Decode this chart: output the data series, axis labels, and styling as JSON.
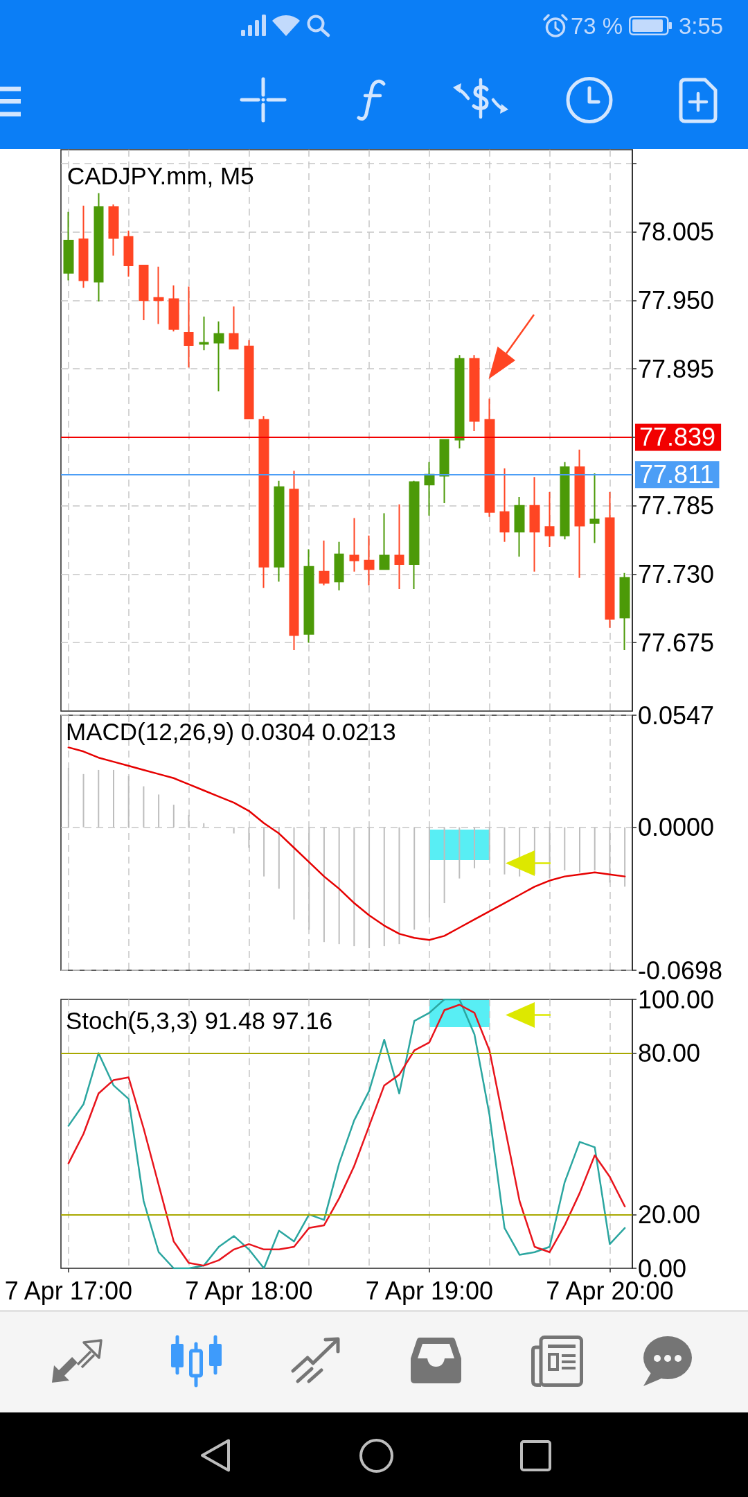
{
  "chart_data": [
    {
      "type": "candlestick",
      "title": "CADJPY.mm, M5",
      "annotations": [
        "73 %",
        "3:55"
      ],
      "categories": [
        null,
        null,
        null,
        null,
        null,
        null,
        null,
        null,
        null,
        null,
        null,
        null,
        null,
        null,
        null,
        null,
        null,
        null,
        null,
        null,
        null,
        null,
        null,
        null,
        null,
        null,
        null,
        null,
        null,
        null,
        null,
        null,
        null,
        null,
        null,
        null,
        null,
        null
      ],
      "ohlc": [
        [
          77.972,
          78.021,
          77.966,
          77.998
        ],
        [
          77.999,
          78.026,
          77.96,
          77.966
        ],
        [
          77.965,
          78.036,
          77.949,
          78.025
        ],
        [
          78.025,
          78.027,
          77.986,
          78.0
        ],
        [
          78.001,
          78.006,
          77.969,
          77.978
        ],
        [
          77.978,
          77.978,
          77.934,
          77.95
        ],
        [
          77.952,
          77.977,
          77.931,
          77.95
        ],
        [
          77.951,
          77.962,
          77.925,
          77.927
        ],
        [
          77.924,
          77.961,
          77.896,
          77.914
        ],
        [
          77.915,
          77.937,
          77.91,
          77.916
        ],
        [
          77.916,
          77.933,
          77.877,
          77.923
        ],
        [
          77.923,
          77.945,
          77.911,
          77.911
        ],
        [
          77.913,
          77.918,
          77.855,
          77.855
        ],
        [
          77.854,
          77.857,
          77.719,
          77.736
        ],
        [
          77.736,
          77.805,
          77.724,
          77.8
        ],
        [
          77.798,
          77.813,
          77.669,
          77.681
        ],
        [
          77.682,
          77.75,
          77.675,
          77.736
        ],
        [
          77.732,
          77.757,
          77.721,
          77.723
        ],
        [
          77.724,
          77.756,
          77.717,
          77.746
        ],
        [
          77.745,
          77.775,
          77.732,
          77.741
        ],
        [
          77.741,
          77.761,
          77.721,
          77.734
        ],
        [
          77.734,
          77.779,
          77.734,
          77.745
        ],
        [
          77.745,
          77.786,
          77.718,
          77.738
        ],
        [
          77.738,
          77.805,
          77.718,
          77.804
        ],
        [
          77.802,
          77.82,
          77.777,
          77.81
        ],
        [
          77.809,
          77.838,
          77.787,
          77.838
        ],
        [
          77.838,
          77.906,
          77.831,
          77.903
        ],
        [
          77.903,
          77.906,
          77.845,
          77.853
        ],
        [
          77.854,
          77.871,
          77.776,
          77.78
        ],
        [
          77.78,
          77.815,
          77.756,
          77.764
        ],
        [
          77.764,
          77.792,
          77.744,
          77.785
        ],
        [
          77.785,
          77.808,
          77.732,
          77.764
        ],
        [
          77.768,
          77.796,
          77.752,
          77.761
        ],
        [
          77.761,
          77.82,
          77.758,
          77.816
        ],
        [
          77.816,
          77.83,
          77.727,
          77.769
        ],
        [
          77.771,
          77.811,
          77.755,
          77.774
        ],
        [
          77.775,
          77.796,
          77.687,
          77.694
        ],
        [
          77.695,
          77.731,
          77.669,
          77.727
        ]
      ],
      "colors": [
        "#4c9a08",
        "#ff4523",
        "#4c9a08",
        "#ff4523",
        "#ff4523",
        "#ff4523",
        "#ff4523",
        "#ff4523",
        "#ff4523",
        "#4c9a08",
        "#4c9a08",
        "#ff4523",
        "#ff4523",
        "#ff4523",
        "#4c9a08",
        "#ff4523",
        "#4c9a08",
        "#ff4523",
        "#4c9a08",
        "#ff4523",
        "#ff4523",
        "#4c9a08",
        "#ff4523",
        "#4c9a08",
        "#4c9a08",
        "#4c9a08",
        "#4c9a08",
        "#ff4523",
        "#ff4523",
        "#ff4523",
        "#4c9a08",
        "#ff4523",
        "#ff4523",
        "#4c9a08",
        "#ff4523",
        "#4c9a08",
        "#ff4523",
        "#4c9a08"
      ],
      "ylim": [
        77.62,
        78.071
      ],
      "yticks": [
        {
          "value": 78.06,
          "label": null
        },
        78.005,
        {
          "value": 77.95,
          "label": "77.950"
        },
        77.895,
        {
          "value": 77.84,
          "label": null
        },
        77.785,
        {
          "value": 77.73,
          "label": "77.730"
        },
        77.675
      ],
      "ref_lines": [
        {
          "axis": "y",
          "value": 77.839,
          "label": "77.839",
          "color": "#f20000"
        },
        {
          "axis": "y",
          "value": 77.811,
          "label": "77.811",
          "color": "#4c9ef6"
        }
      ],
      "grid": true
    },
    {
      "type": "bar",
      "title": "MACD(12,26,9) 0.0304 0.0213",
      "categories": [
        null,
        null,
        null,
        null,
        null,
        null,
        null,
        null,
        null,
        null,
        null,
        null,
        null,
        null,
        null,
        null,
        null,
        null,
        null,
        null,
        null,
        null,
        null,
        null,
        null,
        null,
        null,
        null,
        null,
        null,
        null,
        null,
        null,
        null,
        null,
        null,
        null,
        null
      ],
      "series": [
        {
          "color": "#bdbdbd",
          "values": [
            0.029,
            0.026,
            0.028,
            0.028,
            0.025,
            0.02,
            0.016,
            0.011,
            0.006,
            0.002,
            0,
            -0.003,
            -0.01,
            -0.024,
            -0.03,
            -0.045,
            -0.05,
            -0.056,
            -0.057,
            -0.058,
            -0.059,
            -0.058,
            -0.057,
            -0.05,
            -0.044,
            -0.037,
            -0.025,
            -0.02,
            -0.016,
            -0.023,
            -0.024,
            -0.023,
            -0.025,
            -0.021,
            -0.022,
            -0.021,
            -0.027,
            -0.029
          ]
        },
        {
          "type": "line",
          "color": "#e60000",
          "values": [
            0.039,
            0.037,
            0.034,
            0.032,
            0.03,
            0.028,
            0.026,
            0.024,
            0.021,
            0.018,
            0.015,
            0.012,
            0.008,
            0.002,
            -0.003,
            -0.01,
            -0.017,
            -0.024,
            -0.03,
            -0.037,
            -0.043,
            -0.048,
            -0.052,
            -0.054,
            -0.055,
            -0.053,
            -0.049,
            -0.045,
            -0.041,
            -0.037,
            -0.033,
            -0.029,
            -0.026,
            -0.024,
            -0.023,
            -0.022,
            -0.023,
            -0.024
          ]
        }
      ],
      "ylim": [
        -0.0698,
        0.0547
      ],
      "yticks": [
        -0.0698,
        {
          "value": 0,
          "label": "0.0000"
        },
        0.0547
      ],
      "grid": true
    },
    {
      "type": "line",
      "title": "Stoch(5,3,3) 91.48 97.16",
      "categories": [
        "7 Apr 17:00",
        null,
        null,
        null,
        null,
        null,
        null,
        null,
        null,
        null,
        null,
        null,
        "7 Apr 18:00",
        null,
        null,
        null,
        null,
        null,
        null,
        null,
        null,
        null,
        null,
        null,
        "7 Apr 19:00",
        null,
        null,
        null,
        null,
        null,
        null,
        null,
        null,
        null,
        null,
        null,
        "7 Apr 20:00",
        null
      ],
      "series": [
        {
          "color": "#2ba6a0",
          "values": [
            53,
            61,
            80,
            68,
            63,
            25,
            6,
            0,
            0,
            1,
            8,
            12,
            7,
            0,
            14,
            10,
            20,
            18,
            39,
            55,
            66,
            85,
            65,
            92,
            95,
            100,
            100,
            87,
            57,
            15,
            5,
            6,
            8,
            32,
            47,
            45,
            9,
            15
          ]
        },
        {
          "color": "#e8141c",
          "values": [
            39,
            50,
            65,
            70,
            71,
            52,
            31,
            10,
            2,
            1,
            3,
            7,
            9,
            7,
            7,
            8,
            15,
            16,
            26,
            38,
            53,
            68,
            72,
            81,
            84,
            96,
            98,
            95,
            81,
            53,
            25,
            8,
            6,
            16,
            28,
            42,
            34,
            23
          ]
        }
      ],
      "ylim": [
        0,
        100
      ],
      "yticks": [
        {
          "value": 0,
          "label": "0.00"
        },
        {
          "value": 20,
          "label": "20.00"
        },
        {
          "value": 80,
          "label": "80.00"
        },
        {
          "value": 100,
          "label": "100.00"
        }
      ],
      "ref_lines": [
        {
          "axis": "y",
          "value": 80,
          "label": null,
          "color": "#a8a800"
        },
        {
          "axis": "y",
          "value": 20,
          "label": null,
          "color": "#a8a800"
        }
      ],
      "grid": "x"
    }
  ]
}
